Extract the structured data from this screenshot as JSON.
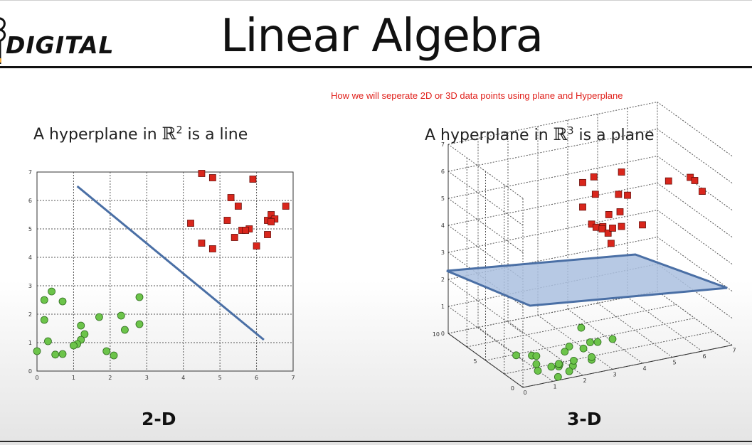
{
  "header": {
    "logo_text": "DIGITAL",
    "title": "Linear Algebra"
  },
  "caption": "How we will seperate 2D or 3D data points using plane and Hyperplane",
  "colors": {
    "red_points": "#d9261c",
    "green_points": "#6cc44a",
    "line": "#4a6fa5",
    "plane_fill": "#aabfdf",
    "caption": "#e0201b"
  },
  "panel_2d": {
    "title_prefix": "A hyperplane in",
    "space": "ℝ",
    "exponent": "2",
    "title_suffix": "is a line",
    "label": "2-D"
  },
  "panel_3d": {
    "title_prefix": "A hyperplane in",
    "space": "ℝ",
    "exponent": "3",
    "title_suffix": "is a plane",
    "label": "3-D"
  },
  "chart_data": [
    {
      "type": "scatter",
      "title": "",
      "xlabel": "",
      "ylabel": "",
      "xlim": [
        0,
        7
      ],
      "ylim": [
        0,
        7
      ],
      "xticks": [
        "0",
        "1",
        "2",
        "3",
        "4",
        "5",
        "6",
        "7"
      ],
      "yticks": [
        "0",
        "1",
        "2",
        "3",
        "4",
        "5",
        "6",
        "7"
      ],
      "grid": true,
      "series": [
        {
          "marker": "square",
          "color": "#d9261c",
          "points": [
            [
              4.5,
              6.95
            ],
            [
              4.8,
              6.8
            ],
            [
              5.9,
              6.75
            ],
            [
              5.3,
              6.1
            ],
            [
              5.5,
              5.8
            ],
            [
              6.8,
              5.8
            ],
            [
              6.4,
              5.5
            ],
            [
              6.5,
              5.35
            ],
            [
              6.3,
              5.3
            ],
            [
              6.4,
              5.25
            ],
            [
              5.2,
              5.3
            ],
            [
              4.2,
              5.2
            ],
            [
              5.8,
              5.0
            ],
            [
              5.6,
              4.95
            ],
            [
              5.7,
              4.95
            ],
            [
              6.3,
              4.8
            ],
            [
              5.4,
              4.7
            ],
            [
              4.5,
              4.5
            ],
            [
              6.0,
              4.4
            ],
            [
              4.8,
              4.3
            ]
          ]
        },
        {
          "marker": "circle",
          "color": "#6cc44a",
          "points": [
            [
              0.4,
              2.8
            ],
            [
              0.2,
              2.5
            ],
            [
              0.7,
              2.45
            ],
            [
              2.8,
              2.6
            ],
            [
              0.2,
              1.8
            ],
            [
              2.3,
              1.95
            ],
            [
              1.7,
              1.9
            ],
            [
              1.2,
              1.6
            ],
            [
              2.8,
              1.65
            ],
            [
              2.4,
              1.45
            ],
            [
              1.3,
              1.3
            ],
            [
              1.2,
              1.1
            ],
            [
              0.3,
              1.05
            ],
            [
              1.1,
              0.95
            ],
            [
              1.0,
              0.9
            ],
            [
              0.0,
              0.7
            ],
            [
              1.9,
              0.7
            ],
            [
              0.7,
              0.6
            ],
            [
              0.5,
              0.58
            ],
            [
              2.1,
              0.55
            ]
          ]
        }
      ],
      "line": [
        [
          1.1,
          6.5
        ],
        [
          6.2,
          1.1
        ]
      ]
    },
    {
      "type": "scatter",
      "title": "",
      "xlim": [
        0,
        7
      ],
      "ylim": [
        0,
        10
      ],
      "zlim": [
        0,
        7
      ],
      "xticks": [
        "0",
        "1",
        "2",
        "3",
        "4",
        "5",
        "6",
        "7"
      ],
      "yticks": [
        "0",
        "5",
        "10"
      ],
      "zticks": [
        "0",
        "1",
        "2",
        "3",
        "4",
        "5",
        "6",
        "7"
      ],
      "grid": true,
      "plane_level_z": 2.4,
      "series": [
        {
          "marker": "square",
          "color": "#d9261c",
          "count": 22
        },
        {
          "marker": "circle",
          "color": "#6cc44a",
          "count": 22
        }
      ]
    }
  ]
}
